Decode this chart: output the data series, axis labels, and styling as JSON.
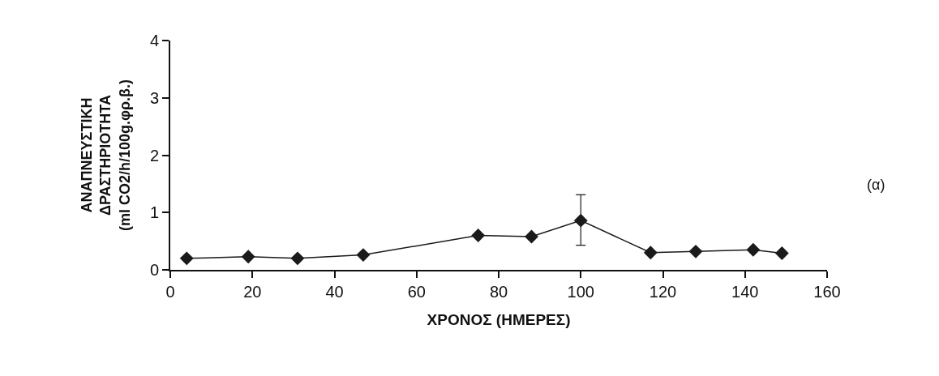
{
  "chart_data": {
    "type": "line",
    "xlabel": "ΧΡΟΝΟΣ (ΗΜΕΡΕΣ)",
    "ylabel": "ΑΝΑΠΝΕΥΣΤΙΚΗ\nΔΡΑΣΤΗΡΙΟΤΗΤΑ\n(ml CO2/h/100g.φρ.β.)",
    "x": [
      4,
      19,
      31,
      47,
      75,
      88,
      100,
      117,
      128,
      142,
      149
    ],
    "series": [
      {
        "color": "#1a1a1a",
        "values": [
          0.2,
          0.23,
          0.2,
          0.26,
          0.6,
          0.58,
          0.86,
          0.3,
          0.32,
          0.35,
          0.29
        ],
        "errors": [
          null,
          null,
          null,
          null,
          null,
          null,
          [
            0.43,
            1.31
          ],
          null,
          null,
          null,
          null
        ]
      }
    ],
    "xlim": [
      0,
      160
    ],
    "xticks": [
      0,
      20,
      40,
      60,
      80,
      100,
      120,
      140,
      160
    ],
    "ylim": [
      0,
      4
    ],
    "yticks": [
      0,
      1,
      2,
      3,
      4
    ],
    "grid": false,
    "legend": false,
    "marker": "diamond",
    "line_style": "solid",
    "annotations": [
      "(α)"
    ]
  }
}
